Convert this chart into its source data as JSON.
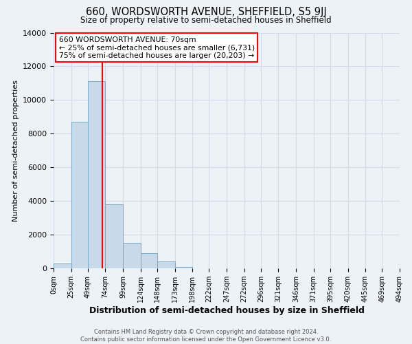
{
  "title": "660, WORDSWORTH AVENUE, SHEFFIELD, S5 9JJ",
  "subtitle": "Size of property relative to semi-detached houses in Sheffield",
  "xlabel": "Distribution of semi-detached houses by size in Sheffield",
  "ylabel": "Number of semi-detached properties",
  "bin_labels": [
    "0sqm",
    "25sqm",
    "49sqm",
    "74sqm",
    "99sqm",
    "124sqm",
    "148sqm",
    "173sqm",
    "198sqm",
    "222sqm",
    "247sqm",
    "272sqm",
    "296sqm",
    "321sqm",
    "346sqm",
    "371sqm",
    "395sqm",
    "420sqm",
    "445sqm",
    "469sqm",
    "494sqm"
  ],
  "bin_edges": [
    0,
    25,
    49,
    74,
    99,
    124,
    148,
    173,
    198,
    222,
    247,
    272,
    296,
    321,
    346,
    371,
    395,
    420,
    445,
    469,
    494
  ],
  "bar_heights": [
    300,
    8700,
    11100,
    3800,
    1500,
    900,
    400,
    100,
    0,
    0,
    0,
    0,
    0,
    0,
    0,
    0,
    0,
    0,
    0,
    0
  ],
  "bar_color": "#c8d9ea",
  "bar_edge_color": "#7aaac8",
  "property_size": 70,
  "vline_color": "red",
  "ylim": [
    0,
    14000
  ],
  "yticks": [
    0,
    2000,
    4000,
    6000,
    8000,
    10000,
    12000,
    14000
  ],
  "annotation_title": "660 WORDSWORTH AVENUE: 70sqm",
  "annotation_line1": "← 25% of semi-detached houses are smaller (6,731)",
  "annotation_line2": "75% of semi-detached houses are larger (20,203) →",
  "annotation_box_color": "white",
  "annotation_box_edge": "red",
  "footer_line1": "Contains HM Land Registry data © Crown copyright and database right 2024.",
  "footer_line2": "Contains public sector information licensed under the Open Government Licence v3.0.",
  "grid_color": "#d0dce8",
  "background_color": "#edf2f7"
}
